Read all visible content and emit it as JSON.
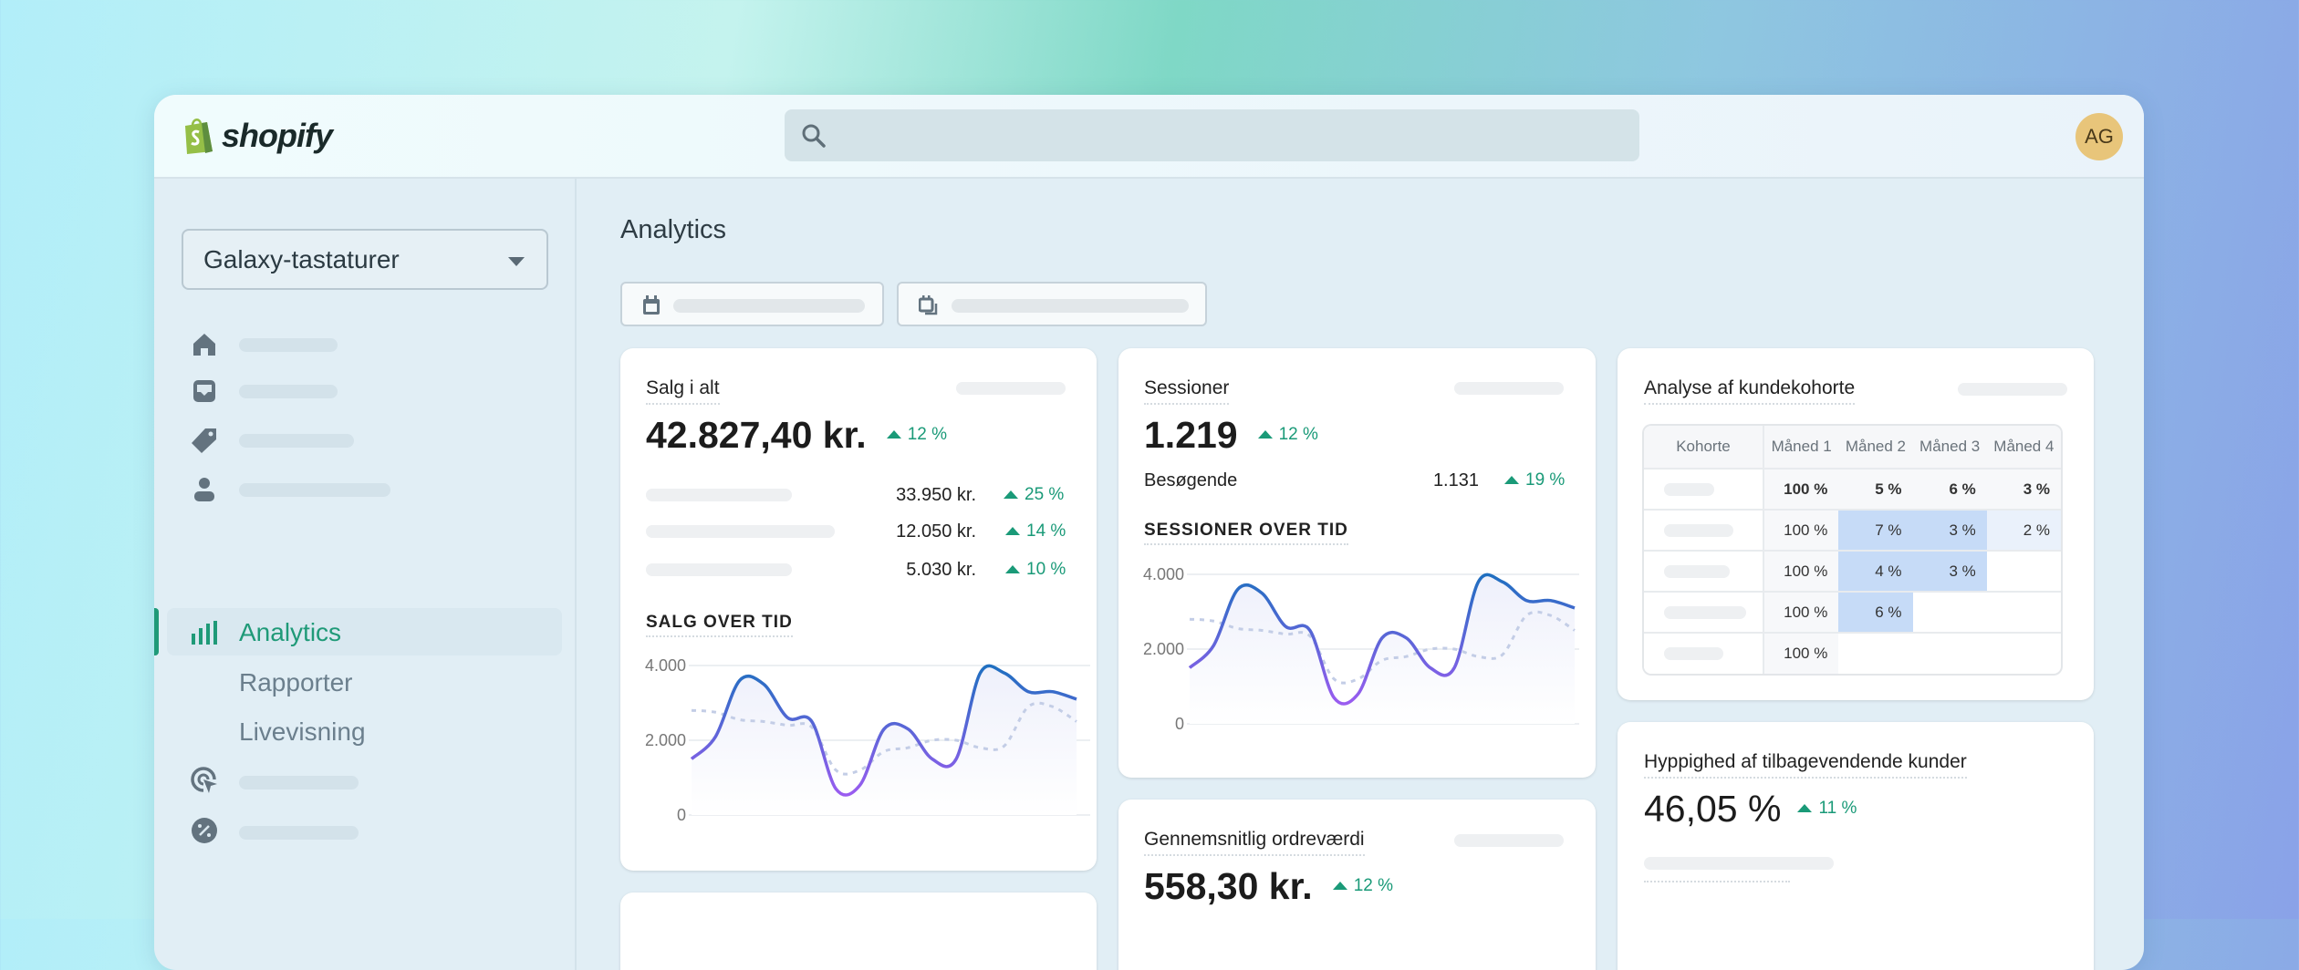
{
  "header": {
    "brand": "shopify",
    "avatar_initials": "AG",
    "avatar_color": "#e8c57a"
  },
  "sidebar": {
    "store": "Galaxy-tastaturer",
    "items": [
      {
        "icon": "home-icon"
      },
      {
        "icon": "inbox-icon"
      },
      {
        "icon": "tag-icon"
      },
      {
        "icon": "person-icon"
      },
      {
        "icon": "bar-chart-icon",
        "label": "Analytics",
        "active": true
      },
      {
        "label": "Rapporter"
      },
      {
        "label": "Livevisning"
      },
      {
        "icon": "target-cursor-icon"
      },
      {
        "icon": "discount-badge-icon"
      }
    ]
  },
  "main": {
    "title": "Analytics"
  },
  "accent_color": "#1a9a78",
  "sales": {
    "title": "Salg i alt",
    "total": "42.827,40 kr.",
    "delta": "12 %",
    "rows": [
      {
        "value": "33.950 kr.",
        "delta": "25 %"
      },
      {
        "value": "12.050 kr.",
        "delta": "14 %"
      },
      {
        "value": "5.030 kr.",
        "delta": "10 %"
      }
    ],
    "chart_title": "SALG OVER TID"
  },
  "sessions": {
    "title": "Sessioner",
    "total": "1.219",
    "delta": "12 %",
    "visitors_label": "Besøgende",
    "visitors": "1.131",
    "visitors_delta": "19 %",
    "chart_title": "SESSIONER OVER TID"
  },
  "aov": {
    "title": "Gennemsnitlig ordreværdi",
    "total": "558,30 kr.",
    "delta": "12 %"
  },
  "cohort": {
    "title": "Analyse af kundekohorte",
    "headers": [
      "Kohorte",
      "Måned 1",
      "Måned 2",
      "Måned 3",
      "Måned 4"
    ],
    "rows": [
      [
        "100 %",
        "5 %",
        "6 %",
        "3 %"
      ],
      [
        "100 %",
        "7 %",
        "3 %",
        "2 %"
      ],
      [
        "100 %",
        "4 %",
        "3 %"
      ],
      [
        "100 %",
        "6 %"
      ],
      [
        "100 %"
      ]
    ]
  },
  "returning": {
    "title": "Hyppighed af tilbagevendende kunder",
    "value": "46,05 %",
    "delta": "11 %"
  },
  "chart_data": [
    {
      "type": "line",
      "title": "SALG OVER TID",
      "yticks": [
        "4.000",
        "2.000",
        "0"
      ],
      "ylim": [
        0,
        4000
      ],
      "grid": true,
      "series": [
        {
          "values": [
            1500,
            2100,
            3600,
            3500,
            2600,
            2500,
            700,
            800,
            2300,
            2300,
            1500,
            1500,
            3800,
            3800,
            3300,
            3300,
            3100
          ]
        },
        {
          "style": "dashed",
          "values": [
            2800,
            2750,
            2550,
            2500,
            2400,
            2350,
            1200,
            1200,
            1700,
            1800,
            2000,
            2000,
            1800,
            1850,
            2900,
            2900,
            2500
          ]
        }
      ]
    },
    {
      "type": "line",
      "title": "SESSIONER OVER TID",
      "yticks": [
        "4.000",
        "2.000",
        "0"
      ],
      "ylim": [
        0,
        4000
      ],
      "grid": true,
      "series": [
        {
          "values": [
            1500,
            2100,
            3600,
            3500,
            2600,
            2500,
            700,
            800,
            2300,
            2300,
            1500,
            1500,
            3800,
            3800,
            3300,
            3300,
            3100
          ]
        },
        {
          "style": "dashed",
          "values": [
            2800,
            2750,
            2550,
            2500,
            2400,
            2350,
            1200,
            1200,
            1700,
            1800,
            2000,
            2000,
            1800,
            1850,
            2900,
            2900,
            2500
          ]
        }
      ]
    }
  ]
}
